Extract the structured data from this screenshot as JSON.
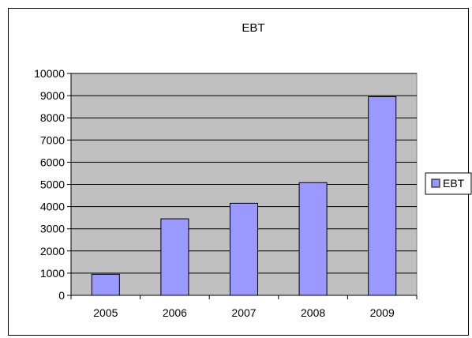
{
  "chart_data": {
    "type": "bar",
    "title": "EBT",
    "categories": [
      "2005",
      "2006",
      "2007",
      "2008",
      "2009"
    ],
    "series": [
      {
        "name": "EBT",
        "values": [
          950,
          3450,
          4150,
          5080,
          8950
        ]
      }
    ],
    "xlabel": "",
    "ylabel": "",
    "ylim": [
      0,
      10000
    ],
    "yticks": [
      0,
      1000,
      2000,
      3000,
      4000,
      5000,
      6000,
      7000,
      8000,
      9000,
      10000
    ],
    "grid": true,
    "legend": "right",
    "colors": {
      "bar_fill": "#9999ff",
      "bar_stroke": "#000000",
      "plot_background": "#c0c0c0",
      "gridline": "#000000"
    }
  }
}
